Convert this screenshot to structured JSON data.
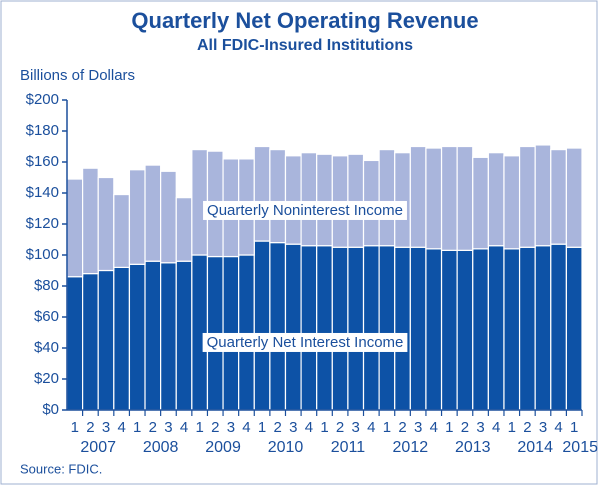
{
  "chart_data": {
    "type": "stacked_bar",
    "title": "Quarterly Net Operating Revenue",
    "subtitle": "All FDIC-Insured Institutions",
    "y_axis_label": "Billions of Dollars",
    "source": "Source: FDIC.",
    "categories": [
      "1",
      "2",
      "3",
      "4",
      "1",
      "2",
      "3",
      "4",
      "1",
      "2",
      "3",
      "4",
      "1",
      "2",
      "3",
      "4",
      "1",
      "2",
      "3",
      "4",
      "1",
      "2",
      "3",
      "4",
      "1",
      "2",
      "3",
      "4",
      "1",
      "2",
      "3",
      "4",
      "1"
    ],
    "years": [
      "2007",
      "2008",
      "2009",
      "2010",
      "2011",
      "2012",
      "2013",
      "2014",
      "2015"
    ],
    "series": [
      {
        "name": "Quarterly Net Interest Income",
        "color": "#0d52a6",
        "values": [
          86,
          88,
          90,
          92,
          94,
          96,
          95,
          96,
          100,
          99,
          99,
          100,
          109,
          108,
          107,
          106,
          106,
          105,
          105,
          106,
          106,
          105,
          105,
          104,
          103,
          103,
          104,
          106,
          104,
          105,
          106,
          107,
          105
        ]
      },
      {
        "name": "Quarterly Noninterest Income",
        "color": "#a9b5dc",
        "values": [
          63,
          68,
          60,
          47,
          61,
          62,
          59,
          41,
          68,
          68,
          63,
          62,
          61,
          60,
          57,
          60,
          59,
          59,
          60,
          55,
          62,
          61,
          65,
          65,
          67,
          67,
          59,
          60,
          60,
          65,
          65,
          61,
          64
        ]
      }
    ],
    "ylim": [
      0,
      200
    ],
    "yticks": [
      {
        "value": 0,
        "label": "$0"
      },
      {
        "value": 20,
        "label": "$20"
      },
      {
        "value": 40,
        "label": "$40"
      },
      {
        "value": 60,
        "label": "$60"
      },
      {
        "value": 80,
        "label": "$80"
      },
      {
        "value": 100,
        "label": "$100"
      },
      {
        "value": 120,
        "label": "$120"
      },
      {
        "value": 140,
        "label": "$140"
      },
      {
        "value": 160,
        "label": "$160"
      },
      {
        "value": 180,
        "label": "$180"
      },
      {
        "value": 200,
        "label": "$200"
      }
    ]
  }
}
